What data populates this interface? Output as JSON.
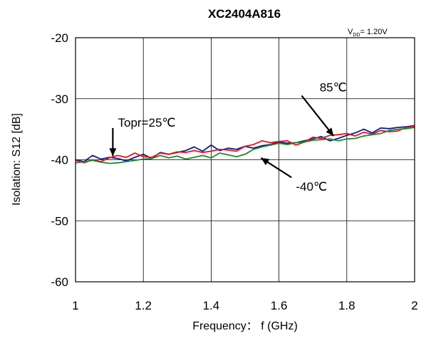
{
  "chart_data": {
    "type": "line",
    "title": "XC2404A816",
    "condition": {
      "prefix": "V",
      "subscript": "DD",
      "value": "= 1.20V"
    },
    "xlabel": "Frequency： f (GHz)",
    "ylabel": "Isolation: S12  [dB]",
    "xlim": [
      1,
      2
    ],
    "ylim": [
      -60,
      -20
    ],
    "xticks": [
      1,
      1.2,
      1.4,
      1.6,
      1.8,
      2
    ],
    "yticks": [
      -60,
      -50,
      -40,
      -30,
      -20
    ],
    "xtick_labels": [
      "1",
      "1.2",
      "1.4",
      "1.6",
      "1.8",
      "2"
    ],
    "ytick_labels": [
      "-60",
      "-50",
      "-40",
      "-30",
      "-20"
    ],
    "grid": true,
    "x": [
      1.0,
      1.025,
      1.05,
      1.075,
      1.1,
      1.125,
      1.15,
      1.175,
      1.2,
      1.225,
      1.25,
      1.275,
      1.3,
      1.325,
      1.35,
      1.375,
      1.4,
      1.425,
      1.45,
      1.475,
      1.5,
      1.525,
      1.55,
      1.575,
      1.6,
      1.625,
      1.65,
      1.675,
      1.7,
      1.725,
      1.75,
      1.775,
      1.8,
      1.825,
      1.85,
      1.875,
      1.9,
      1.925,
      1.95,
      1.975,
      2.0
    ],
    "series": [
      {
        "name": "85℃",
        "color": "#0b1d8c",
        "values": [
          -40.0,
          -40.3,
          -39.3,
          -39.9,
          -39.6,
          -39.8,
          -40.2,
          -39.6,
          -39.1,
          -39.8,
          -38.8,
          -39.1,
          -38.8,
          -38.5,
          -37.9,
          -38.6,
          -37.6,
          -38.5,
          -38.1,
          -38.3,
          -37.8,
          -38.1,
          -37.7,
          -37.5,
          -37.1,
          -37.3,
          -37.2,
          -36.9,
          -36.6,
          -36.2,
          -36.9,
          -36.5,
          -36.0,
          -35.6,
          -35.0,
          -35.6,
          -34.8,
          -34.9,
          -34.7,
          -34.6,
          -34.4
        ]
      },
      {
        "name": "Topr=25℃",
        "color": "#e8121c",
        "values": [
          -40.1,
          -40.5,
          -40.0,
          -40.3,
          -39.7,
          -39.3,
          -39.6,
          -38.9,
          -39.5,
          -39.6,
          -38.9,
          -39.1,
          -38.7,
          -38.8,
          -38.5,
          -38.8,
          -38.6,
          -38.3,
          -38.4,
          -38.6,
          -37.8,
          -37.5,
          -36.9,
          -37.2,
          -37.0,
          -36.9,
          -37.6,
          -37.1,
          -36.3,
          -36.5,
          -36.0,
          -35.9,
          -35.7,
          -36.1,
          -35.5,
          -35.8,
          -35.2,
          -35.4,
          -35.3,
          -34.7,
          -34.5
        ]
      },
      {
        "name": "-40℃",
        "color": "#1c8a2a",
        "values": [
          -40.5,
          -40.3,
          -40.1,
          -40.4,
          -40.6,
          -40.5,
          -40.3,
          -40.1,
          -39.9,
          -39.8,
          -39.3,
          -39.7,
          -39.4,
          -39.9,
          -39.6,
          -39.3,
          -39.7,
          -38.9,
          -39.2,
          -39.5,
          -39.1,
          -38.3,
          -37.9,
          -37.6,
          -37.3,
          -37.5,
          -37.2,
          -37.1,
          -36.8,
          -36.7,
          -36.6,
          -36.9,
          -36.6,
          -36.5,
          -36.1,
          -35.9,
          -35.7,
          -35.2,
          -35.0,
          -34.9,
          -34.7
        ]
      }
    ],
    "annotations": [
      {
        "text": "85℃",
        "label_x": 1.72,
        "label_y": -28.8,
        "arrow_from": [
          1.667,
          -29.5
        ],
        "arrow_to": [
          1.761,
          -36.1
        ]
      },
      {
        "text": "Topr=25℃",
        "label_x": 1.125,
        "label_y": -34.6,
        "arrow_from": [
          1.11,
          -34.8
        ],
        "arrow_to": [
          1.11,
          -39.4
        ]
      },
      {
        "text": "-40℃",
        "label_x": 1.65,
        "label_y": -45.1,
        "arrow_from": [
          1.637,
          -42.9
        ],
        "arrow_to": [
          1.547,
          -39.7
        ]
      }
    ]
  }
}
